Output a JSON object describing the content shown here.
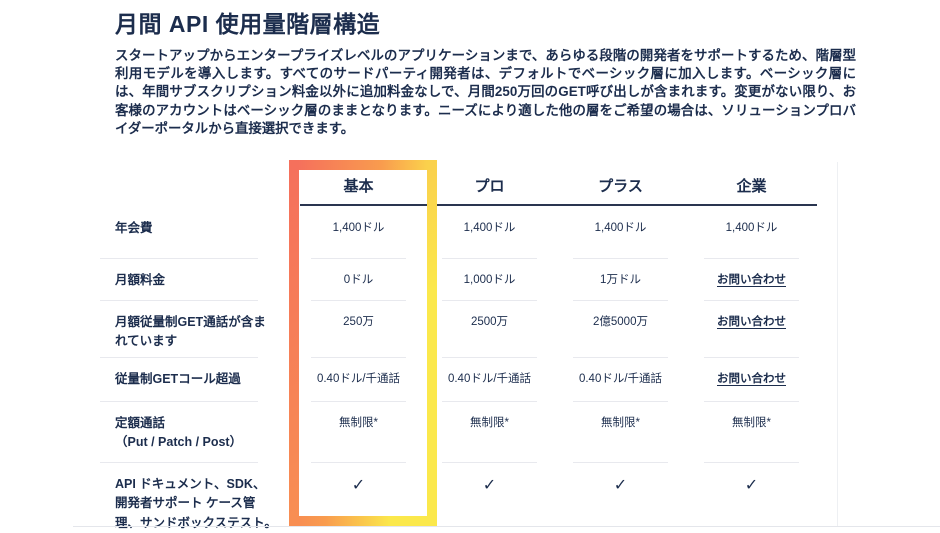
{
  "page": {
    "title": "月間 API 使用量階層構造",
    "intro": "スタートアップからエンタープライズレベルのアプリケーションまで、あらゆる段階の開発者をサポートするため、階層型利用モデルを導入します。すべてのサードパーティ開発者は、デフォルトでベーシック層に加入します。ベーシック層には、年間サブスクリプション料金以外に追加料金なしで、月間250万回のGET呼び出しが含まれます。変更がない限り、お客様のアカウントはベーシック層のままとなります。ニーズにより適した他の層をご希望の場合は、ソリューションプロバイダーポータルから直接選択できます。"
  },
  "table": {
    "columns": [
      "基本",
      "プロ",
      "プラス",
      "企業"
    ],
    "highlighted_column": "基本",
    "rows": [
      {
        "label": "年会費",
        "values": [
          "1,400ドル",
          "1,400ドル",
          "1,400ドル",
          "1,400ドル"
        ]
      },
      {
        "label": "月額料金",
        "values": [
          "0ドル",
          "1,000ドル",
          "1万ドル",
          "お問い合わせ"
        ]
      },
      {
        "label": "月額従量制GET通話が含まれています",
        "values": [
          "250万",
          "2500万",
          "2億5000万",
          "お問い合わせ"
        ]
      },
      {
        "label": "従量制GETコール超過",
        "values": [
          "0.40ドル/千通話",
          "0.40ドル/千通話",
          "0.40ドル/千通話",
          "お問い合わせ"
        ]
      },
      {
        "label": "定額通話",
        "label2": "（Put / Patch / Post）",
        "values": [
          "無制限*",
          "無制限*",
          "無制限*",
          "無制限*"
        ]
      },
      {
        "label": "API ドキュメント、SDK、開発者サポート ケース管理、サンドボックステスト。",
        "values": [
          "✓",
          "✓",
          "✓",
          "✓"
        ]
      }
    ]
  },
  "colors": {
    "text_navy": "#1c2d4d",
    "header_rule": "#2a3550",
    "row_divider": "#e8e9ee",
    "highlight_gradient_start": "#f5705c",
    "highlight_gradient_mid": "#f99c4e",
    "highlight_gradient_end": "#fbe84b"
  }
}
